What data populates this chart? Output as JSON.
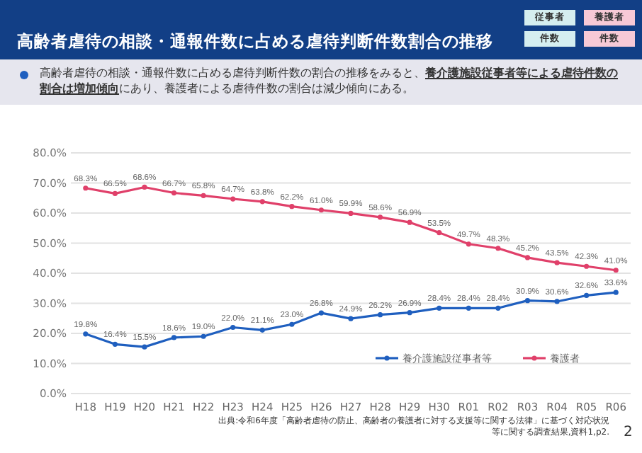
{
  "chart_data": {
    "type": "line",
    "title": "高齢者虐待の相談・通報件数に占める虐待判断件数割合の推移",
    "subtitle": "高齢者虐待の相談・通報件数に占める虐待判断件数の割合の推移をみると、**養介護施設従事者等による虐待件数の割合は増加傾向**にあり、養護者による虐待件数の割合は減少傾向にある。",
    "categories": [
      "H18",
      "H19",
      "H20",
      "H21",
      "H22",
      "H23",
      "H24",
      "H25",
      "H26",
      "H27",
      "H28",
      "H29",
      "H30",
      "R01",
      "R02",
      "R03",
      "R04",
      "R05",
      "R06"
    ],
    "series": [
      {
        "name": "養介護施設従事者等",
        "color": "#1f5fbf",
        "values": [
          19.8,
          16.4,
          15.5,
          18.6,
          19.0,
          22.0,
          21.1,
          23.0,
          26.8,
          24.9,
          26.2,
          26.9,
          28.4,
          28.4,
          28.4,
          30.9,
          30.6,
          32.6,
          33.6
        ],
        "value_labels": [
          "19.8%",
          "16.4%",
          "15.5%",
          "18.6%",
          "19.0%",
          "22.0%",
          "21.1%",
          "23.0%",
          "26.8%",
          "24.9%",
          "26.2%",
          "26.9%",
          "28.4%",
          "28.4%",
          "28.4%",
          "30.9%",
          "30.6%",
          "32.6%",
          "33.6%"
        ]
      },
      {
        "name": "養護者",
        "color": "#e0406a",
        "values": [
          68.3,
          66.5,
          68.6,
          66.7,
          65.8,
          64.7,
          63.8,
          62.2,
          61.0,
          59.9,
          58.6,
          56.9,
          53.5,
          49.7,
          48.3,
          45.2,
          43.5,
          42.3,
          41.0
        ],
        "value_labels": [
          "68.3%",
          "66.5%",
          "68.6%",
          "66.7%",
          "65.8%",
          "64.7%",
          "63.8%",
          "62.2%",
          "61.0%",
          "59.9%",
          "58.6%",
          "56.9%",
          "53.5%",
          "49.7%",
          "48.3%",
          "45.2%",
          "43.5%",
          "42.3%",
          "41.0%"
        ]
      }
    ],
    "ylim": [
      0,
      80
    ],
    "yticks": [
      {
        "value": 0,
        "label": "0.0%"
      },
      {
        "value": 10,
        "label": "10.0%"
      },
      {
        "value": 20,
        "label": "20.0%"
      },
      {
        "value": 30,
        "label": "30.0%"
      },
      {
        "value": 40,
        "label": "40.0%"
      },
      {
        "value": 50,
        "label": "50.0%"
      },
      {
        "value": 60,
        "label": "60.0%"
      },
      {
        "value": 70,
        "label": "70.0%"
      },
      {
        "value": 80,
        "label": "80.0%"
      }
    ],
    "grid": "y",
    "legend": "bottom right",
    "marker": "circle",
    "line_style": "solid",
    "annotations": [
      "従事者",
      "養護者",
      "件数",
      "件数",
      "出典:令和6年度「高齢者虐待の防止、高齢者の養護者に対する支援等に関する法律」に基づく対応状況等に関する調査結果,資料1,p2.",
      "2"
    ]
  }
}
